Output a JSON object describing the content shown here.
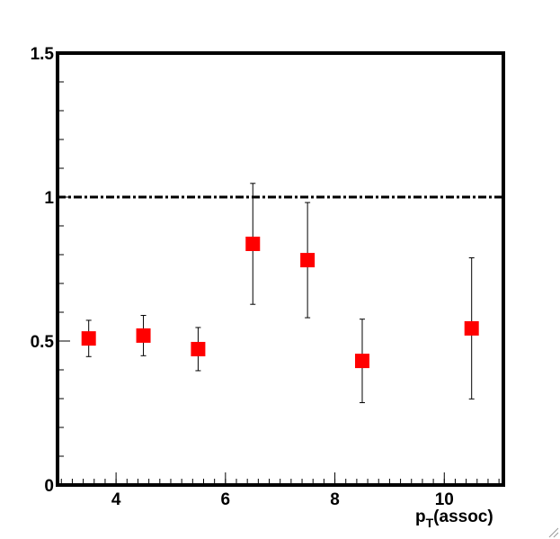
{
  "chart_data": {
    "type": "scatter",
    "x": [
      3.5,
      4.5,
      5.5,
      6.5,
      7.5,
      8.5,
      10.5
    ],
    "values": [
      0.509,
      0.519,
      0.472,
      0.8375,
      0.781,
      0.431,
      0.544
    ],
    "errors": [
      0.063,
      0.07,
      0.075,
      0.21,
      0.2,
      0.145,
      0.245
    ],
    "color": "#ff0000",
    "xlim": [
      2.93,
      11.08
    ],
    "ylim": [
      0,
      1.5
    ],
    "xticks": [
      4,
      6,
      8,
      10
    ],
    "yticks": [
      0,
      0.5,
      1,
      1.5
    ],
    "reference_line": 1,
    "xlabel": "p",
    "xlabel_sub": "T",
    "xlabel_suffix": "(assoc)"
  }
}
